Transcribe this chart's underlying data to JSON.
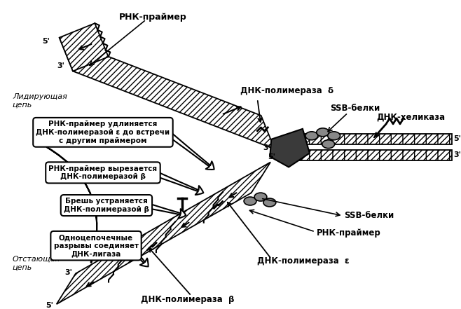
{
  "labels": {
    "rnk_primer_top": "РНК-праймер",
    "leading_strand": "Лидирующая\nцепь",
    "dnk_pol_delta": "ДНК-полимераза  δ",
    "ssb_top": "SSB-белки",
    "dnk_helicase": "ДНК-хеликаза",
    "ssb_bottom": "SSB-белки",
    "rnk_primer_bottom": "РНК-праймер",
    "dnk_pol_epsilon": "ДНК-полимераза  ε",
    "dnk_pol_beta": "ДНК-полимераза  β",
    "lagging_strand": "Отстающая\nцепь",
    "box1": "РНК-праймер удлиняется\nДНК-полимеразой ε до встречи\nс другим праймером",
    "box2": "РНК-праймер вырезается\nДНК-полимеразой β",
    "box3": "Брешь устраняется\nДНК-полимеразой β",
    "box4": "Одноцепочечные\nразрывы соединяет\nДНК-лигаза"
  }
}
